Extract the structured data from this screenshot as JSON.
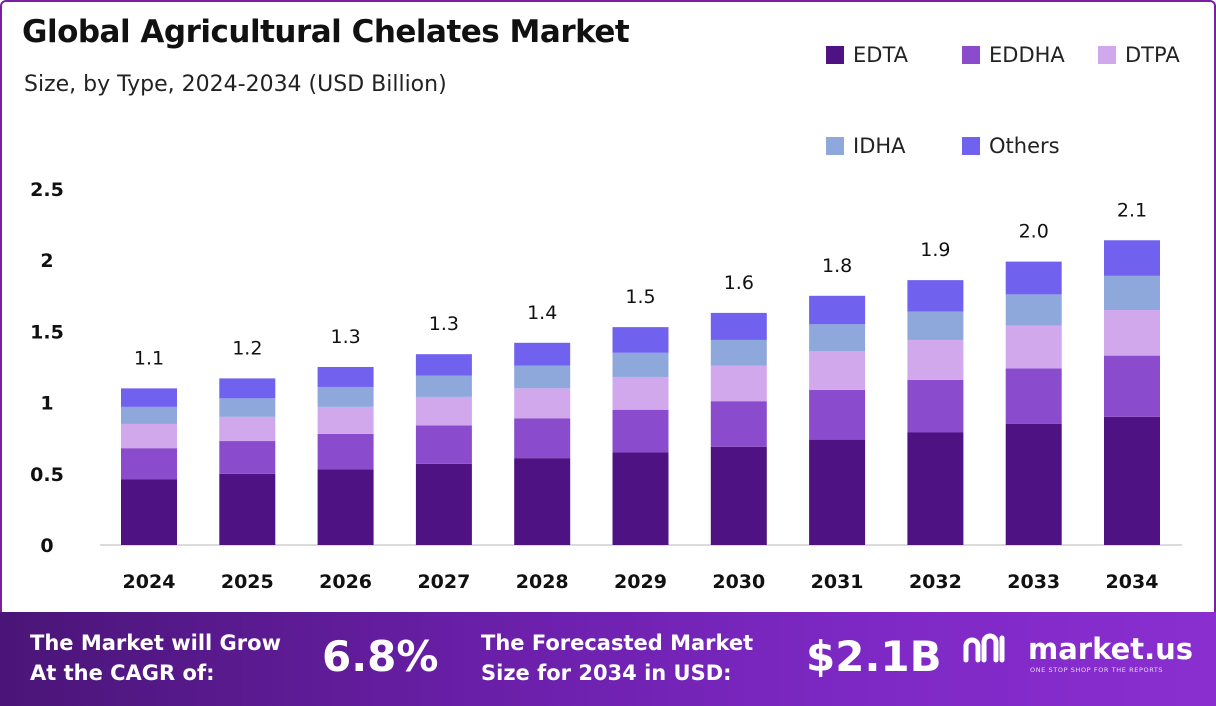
{
  "title": "Global Agricultural Chelates Market",
  "subtitle": "Size, by Type, 2024-2034 (USD Billion)",
  "legend": [
    {
      "name": "EDTA",
      "color": "#4f1283"
    },
    {
      "name": "EDDHA",
      "color": "#8a4ccc"
    },
    {
      "name": "DTPA",
      "color": "#d2a8ec"
    },
    {
      "name": "IDHA",
      "color": "#8fa8dc"
    },
    {
      "name": "Others",
      "color": "#7062ee"
    }
  ],
  "footer": {
    "cagr_label_line1": "The Market will Grow",
    "cagr_label_line2": "At the CAGR of:",
    "cagr_value": "6.8%",
    "forecast_label_line1": "The Forecasted Market",
    "forecast_label_line2": "Size for 2034 in USD:",
    "forecast_value": "$2.1B",
    "brand_name": "market.us",
    "brand_tagline": "ONE STOP SHOP FOR THE REPORTS"
  },
  "chart_data": {
    "type": "bar",
    "stacked": true,
    "categories": [
      "2024",
      "2025",
      "2026",
      "2027",
      "2028",
      "2029",
      "2030",
      "2031",
      "2032",
      "2033",
      "2034"
    ],
    "totals_labels": [
      "1.1",
      "1.2",
      "1.3",
      "1.3",
      "1.4",
      "1.5",
      "1.6",
      "1.8",
      "1.9",
      "2.0",
      "2.1"
    ],
    "series": [
      {
        "name": "EDTA",
        "color": "#4f1283",
        "values": [
          0.46,
          0.5,
          0.53,
          0.57,
          0.61,
          0.65,
          0.69,
          0.74,
          0.79,
          0.85,
          0.9
        ]
      },
      {
        "name": "EDDHA",
        "color": "#8a4ccc",
        "values": [
          0.22,
          0.23,
          0.25,
          0.27,
          0.28,
          0.3,
          0.32,
          0.35,
          0.37,
          0.39,
          0.43
        ]
      },
      {
        "name": "DTPA",
        "color": "#d2a8ec",
        "values": [
          0.17,
          0.17,
          0.19,
          0.2,
          0.21,
          0.23,
          0.25,
          0.27,
          0.28,
          0.3,
          0.32
        ]
      },
      {
        "name": "IDHA",
        "color": "#8fa8dc",
        "values": [
          0.12,
          0.13,
          0.14,
          0.15,
          0.16,
          0.17,
          0.18,
          0.19,
          0.2,
          0.22,
          0.24
        ]
      },
      {
        "name": "Others",
        "color": "#7062ee",
        "values": [
          0.13,
          0.14,
          0.14,
          0.15,
          0.16,
          0.18,
          0.19,
          0.2,
          0.22,
          0.23,
          0.25
        ]
      }
    ],
    "y_ticks": [
      "0",
      "0.5",
      "1",
      "1.5",
      "2",
      "2.5"
    ],
    "ylim": [
      0,
      2.5
    ],
    "grid": false,
    "legend_position": "top-right"
  }
}
